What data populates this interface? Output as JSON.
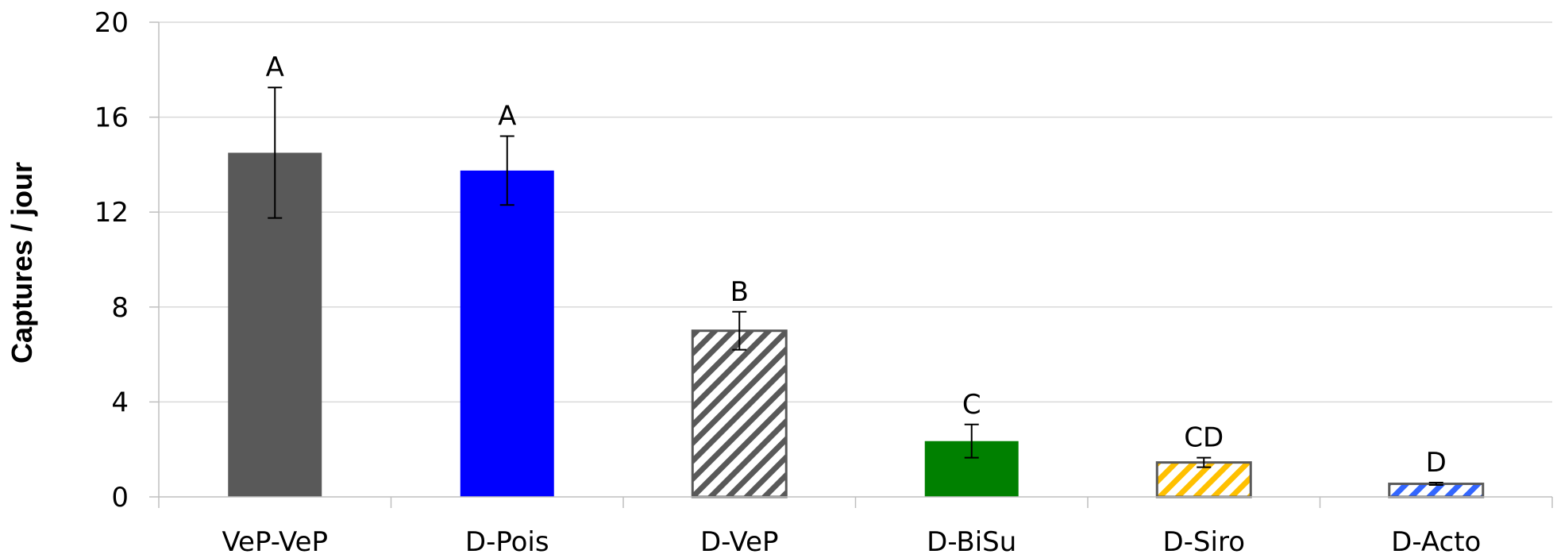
{
  "chart_data": {
    "type": "bar",
    "categories": [
      "VeP-VeP",
      "D-Pois",
      "D-VeP",
      "D-BiSu",
      "D-Siro",
      "D-Acto"
    ],
    "values": [
      14.5,
      13.75,
      7.0,
      2.35,
      1.45,
      0.55
    ],
    "error": [
      2.75,
      1.45,
      0.8,
      0.7,
      0.2,
      0.05
    ],
    "significance": [
      "A",
      "A",
      "B",
      "C",
      "CD",
      "D"
    ],
    "bar_styles": [
      {
        "fill": "#595959",
        "pattern": "solid"
      },
      {
        "fill": "#0000ff",
        "pattern": "solid"
      },
      {
        "fill": "#595959",
        "pattern": "hatch"
      },
      {
        "fill": "#008000",
        "pattern": "solid"
      },
      {
        "fill": "#ffc000",
        "pattern": "hatch"
      },
      {
        "fill": "#3366ff",
        "pattern": "hatch"
      }
    ],
    "ylabel": "Captures / jour",
    "xlabel": "",
    "title": "",
    "ylim": [
      0,
      20
    ],
    "yticks": [
      0,
      4,
      8,
      12,
      16,
      20
    ],
    "grid": true,
    "legend": "none"
  }
}
